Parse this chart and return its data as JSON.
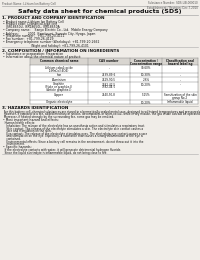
{
  "bg_color": "#f0ede8",
  "header_left": "Product Name: Lithium Ion Battery Cell",
  "header_right": "Substance Number: SDS-LIB-000010\nEstablishment / Revision: Dec.7.2010",
  "title": "Safety data sheet for chemical products (SDS)",
  "s1_title": "1. PRODUCT AND COMPANY IDENTIFICATION",
  "s1_lines": [
    " • Product name: Lithium Ion Battery Cell",
    " • Product code: Cylindrical-type cell",
    "    ISR18650U, ISR18650L, ISR18650A",
    " • Company name:    Sanyo Electric Co., Ltd.  Mobile Energy Company",
    " • Address:         2001  Kamiizumi, Sumoto City, Hyogo, Japan",
    " • Telephone number:   +81-799-20-4111",
    " • Fax number:  +81-799-26-4129",
    " • Emergency telephone number (Weekdays): +81-799-20-2662",
    "                             (Night and holiday): +81-799-26-4101"
  ],
  "s2_title": "2. COMPOSITION / INFORMATION ON INGREDIENTS",
  "s2_l1": " • Substance or preparation: Preparation",
  "s2_l2": " • Information about the chemical nature of product:",
  "tbl_cols": [
    30,
    88,
    130,
    162,
    198
  ],
  "tbl_hdrs": [
    "Common chemical name",
    "CAS number",
    "Concentration /\nConcentration range",
    "Classification and\nhazard labeling"
  ],
  "tbl_rows": [
    [
      "Lithium cobalt oxide\n(LiMnCo3·4O4)",
      "-",
      "30-60%",
      "-"
    ],
    [
      "Iron",
      "7439-89-6",
      "10-30%",
      "-"
    ],
    [
      "Aluminium",
      "7429-90-5",
      "2-6%",
      "-"
    ],
    [
      "Graphite\n(Flake or graphite-I)\n(Article graphite-I)",
      "7782-42-5\n7782-44-5",
      "10-20%",
      "-"
    ],
    [
      "Copper",
      "7440-50-8",
      "5-15%",
      "Sensitization of the skin\ngroup No.2"
    ],
    [
      "Organic electrolyte",
      "-",
      "10-20%",
      "Inflammable liquid"
    ]
  ],
  "s3_title": "3. HAZARDS IDENTIFICATION",
  "s3_p1": "  For this battery cell, chemical substances are stored in a hermetically sealed metal case, designed to withstand temperatures and pressures/deformations during normal use. As a result, during normal use, there is no physical danger of ignition or explosion and there is no danger of hazardous materials leakage.",
  "s3_p2": "  However, if exposed to a fire, added mechanical shocks, decomposed, or short-circuit, while in dry misuse, the gas inside can/will be operated. The battery cell case will be breached at fire-extreme. Hazardous materials may be released.",
  "s3_p3": "  Moreover, if heated strongly by the surrounding fire, some gas may be emitted.",
  "s3_b1": " • Most important hazard and effects:",
  "s3_b1_lines": [
    "   Human health effects:",
    "     Inhalation: The release of the electrolyte has an anesthesia action and stimulates a respiratory tract.",
    "     Skin contact: The release of the electrolyte stimulates a skin. The electrolyte skin contact causes a",
    "     sore and stimulation on the skin.",
    "     Eye contact: The release of the electrolyte stimulates eyes. The electrolyte eye contact causes a sore",
    "     and stimulation on the eye. Especially, a substance that causes a strong inflammation of the eye is",
    "     contained.",
    "     Environmental effects: Since a battery cell remains in the environment, do not throw out it into the",
    "     environment."
  ],
  "s3_b2": " • Specific hazards:",
  "s3_b2_lines": [
    "   If the electrolyte contacts with water, it will generate detrimental hydrogen fluoride.",
    "   Since the liquid electrolyte is inflammable liquid, do not bring close to fire."
  ],
  "line_color": "#999999",
  "text_color": "#111111",
  "header_text_color": "#555555",
  "tbl_header_bg": "#d8d5d0",
  "tbl_row_bg": "#ffffff"
}
